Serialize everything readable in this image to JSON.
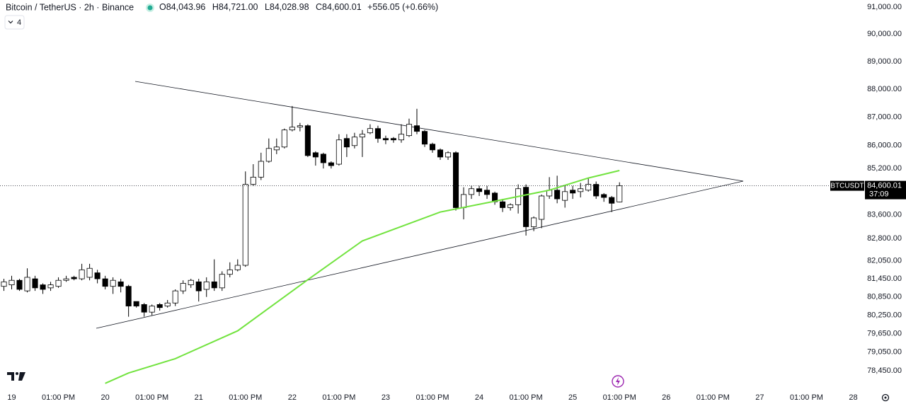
{
  "header": {
    "symbol": "Bitcoin / TetherUS · 2h · Binance",
    "ohlc": [
      {
        "key": "O",
        "value": "84,043.96"
      },
      {
        "key": "H",
        "value": "84,721.00"
      },
      {
        "key": "L",
        "value": "84,028.98"
      },
      {
        "key": "C",
        "value": "84,600.01"
      }
    ],
    "change": "+556.05 (+0.66%)",
    "indicators_count": 4
  },
  "chart_data": {
    "type": "candlestick",
    "log_scale": true,
    "grid": false,
    "up_color": "#ffffff",
    "down_color": "#000000",
    "wick_color": "#000000",
    "candles": {
      "open": [
        81200,
        81250,
        81400,
        81050,
        81450,
        81250,
        81150,
        81200,
        81400,
        81500,
        81450,
        81500,
        81650,
        81450,
        81200,
        81350,
        81200,
        80700,
        80600,
        80350,
        80600,
        80550,
        80650,
        81050,
        81250,
        81350,
        81100,
        81350,
        81150,
        81600,
        81750,
        81900,
        84650,
        84900,
        85450,
        85850,
        85950,
        86550,
        86650,
        86700,
        85750,
        85700,
        85400,
        85350,
        86250,
        86000,
        86300,
        86450,
        86600,
        86250,
        86250,
        86200,
        86350,
        86700,
        86500,
        86050,
        85850,
        85600,
        85750,
        83850,
        84300,
        84500,
        84450,
        84350,
        84050,
        83850,
        83950,
        84550,
        83200,
        83450,
        84250,
        84450,
        84100,
        84450,
        84400,
        84450,
        84650,
        84300,
        84200,
        84043.96
      ],
      "high": [
        81450,
        81550,
        81450,
        81800,
        81550,
        81300,
        81350,
        81500,
        81550,
        81550,
        81950,
        81950,
        81750,
        81550,
        81500,
        81450,
        81250,
        80700,
        80650,
        80600,
        80650,
        80750,
        81100,
        81400,
        81450,
        81450,
        81500,
        82100,
        81700,
        82000,
        82100,
        85100,
        85350,
        85750,
        86250,
        86250,
        86600,
        87400,
        86800,
        86750,
        85800,
        85750,
        85450,
        86400,
        86400,
        86450,
        86550,
        86750,
        86700,
        86350,
        86300,
        86750,
        86950,
        87300,
        86550,
        86100,
        85900,
        85800,
        85800,
        84550,
        84600,
        84600,
        84600,
        84400,
        84150,
        84000,
        84650,
        84650,
        83550,
        84300,
        84900,
        84950,
        84600,
        84600,
        84700,
        84850,
        84750,
        84350,
        84250,
        84721
      ],
      "low": [
        81050,
        81100,
        81050,
        81000,
        81050,
        80950,
        81050,
        81150,
        81350,
        81400,
        81400,
        81400,
        81300,
        81100,
        80950,
        81000,
        80200,
        80500,
        80200,
        80250,
        80400,
        80500,
        80550,
        80950,
        81150,
        80700,
        80850,
        81050,
        81050,
        81500,
        81700,
        81850,
        84600,
        84800,
        85400,
        85700,
        85900,
        86500,
        86500,
        85600,
        85300,
        85200,
        85200,
        85300,
        85600,
        85900,
        85600,
        86400,
        86100,
        86050,
        86100,
        86100,
        86300,
        86400,
        85950,
        85750,
        85500,
        85500,
        83750,
        83450,
        84150,
        84250,
        84150,
        83950,
        83700,
        83750,
        83650,
        82900,
        83050,
        83150,
        84150,
        84000,
        83850,
        84150,
        84200,
        84400,
        84150,
        84050,
        83700,
        84028.98
      ],
      "close": [
        81350,
        81400,
        81100,
        81500,
        81150,
        81100,
        81250,
        81400,
        81450,
        81450,
        81750,
        81800,
        81450,
        81200,
        81400,
        81200,
        80550,
        80550,
        80350,
        80550,
        80500,
        80650,
        81050,
        81300,
        81400,
        81050,
        81350,
        81150,
        81600,
        81750,
        81900,
        84650,
        84900,
        85450,
        85900,
        85950,
        86550,
        86650,
        86700,
        85650,
        85600,
        85400,
        85300,
        86200,
        85950,
        86300,
        86400,
        86600,
        86250,
        86200,
        86200,
        86400,
        86750,
        86500,
        86050,
        85850,
        85600,
        85750,
        83850,
        84300,
        84500,
        84400,
        84300,
        84050,
        83850,
        83950,
        84500,
        83200,
        83500,
        84250,
        84450,
        84150,
        84400,
        84350,
        84500,
        84650,
        84250,
        84200,
        84000,
        84600.01
      ]
    },
    "ma": {
      "color": "#72e33f",
      "x": [
        13,
        16,
        22,
        30,
        39,
        46,
        56,
        63,
        70,
        75,
        79
      ],
      "values": [
        78050,
        78380,
        78840,
        79740,
        81420,
        82720,
        83700,
        84070,
        84450,
        84870,
        85130
      ]
    },
    "price_tag": {
      "symbol": "BTCUSDT",
      "price": "84,600.01",
      "countdown": "37:09"
    },
    "ylim": [
      77955,
      91263
    ],
    "yticks": [
      {
        "value": 91000,
        "label": "91,000.00"
      },
      {
        "value": 90000,
        "label": "90,000.00"
      },
      {
        "value": 89000,
        "label": "89,000.00"
      },
      {
        "value": 88000,
        "label": "88,000.00"
      },
      {
        "value": 87000,
        "label": "87,000.00"
      },
      {
        "value": 86000,
        "label": "86,000.00"
      },
      {
        "value": 85200,
        "label": "85,200.00"
      },
      {
        "value": 83600,
        "label": "83,600.00"
      },
      {
        "value": 82800,
        "label": "82,800.00"
      },
      {
        "value": 82050,
        "label": "82,050.00"
      },
      {
        "value": 81450,
        "label": "81,450.00"
      },
      {
        "value": 80850,
        "label": "80,850.00"
      },
      {
        "value": 80250,
        "label": "80,250.00"
      },
      {
        "value": 79650,
        "label": "79,650.00"
      },
      {
        "value": 79050,
        "label": "79,050.00"
      },
      {
        "value": 78450,
        "label": "78,450.00"
      }
    ],
    "xlim": [
      -0.5,
      110.5
    ],
    "xticks": [
      {
        "value": 1,
        "label": "19"
      },
      {
        "value": 7,
        "label": "01:00 PM"
      },
      {
        "value": 13,
        "label": "20"
      },
      {
        "value": 19,
        "label": "01:00 PM"
      },
      {
        "value": 25,
        "label": "21"
      },
      {
        "value": 31,
        "label": "01:00 PM"
      },
      {
        "value": 37,
        "label": "22"
      },
      {
        "value": 43,
        "label": "01:00 PM"
      },
      {
        "value": 49,
        "label": "23"
      },
      {
        "value": 55,
        "label": "01:00 PM"
      },
      {
        "value": 61,
        "label": "24"
      },
      {
        "value": 67,
        "label": "01:00 PM"
      },
      {
        "value": 73,
        "label": "25"
      },
      {
        "value": 79,
        "label": "01:00 PM"
      },
      {
        "value": 85,
        "label": "26"
      },
      {
        "value": 91,
        "label": "01:00 PM"
      },
      {
        "value": 97,
        "label": "27"
      },
      {
        "value": 103,
        "label": "01:00 PM"
      },
      {
        "value": 109,
        "label": "28"
      }
    ]
  }
}
